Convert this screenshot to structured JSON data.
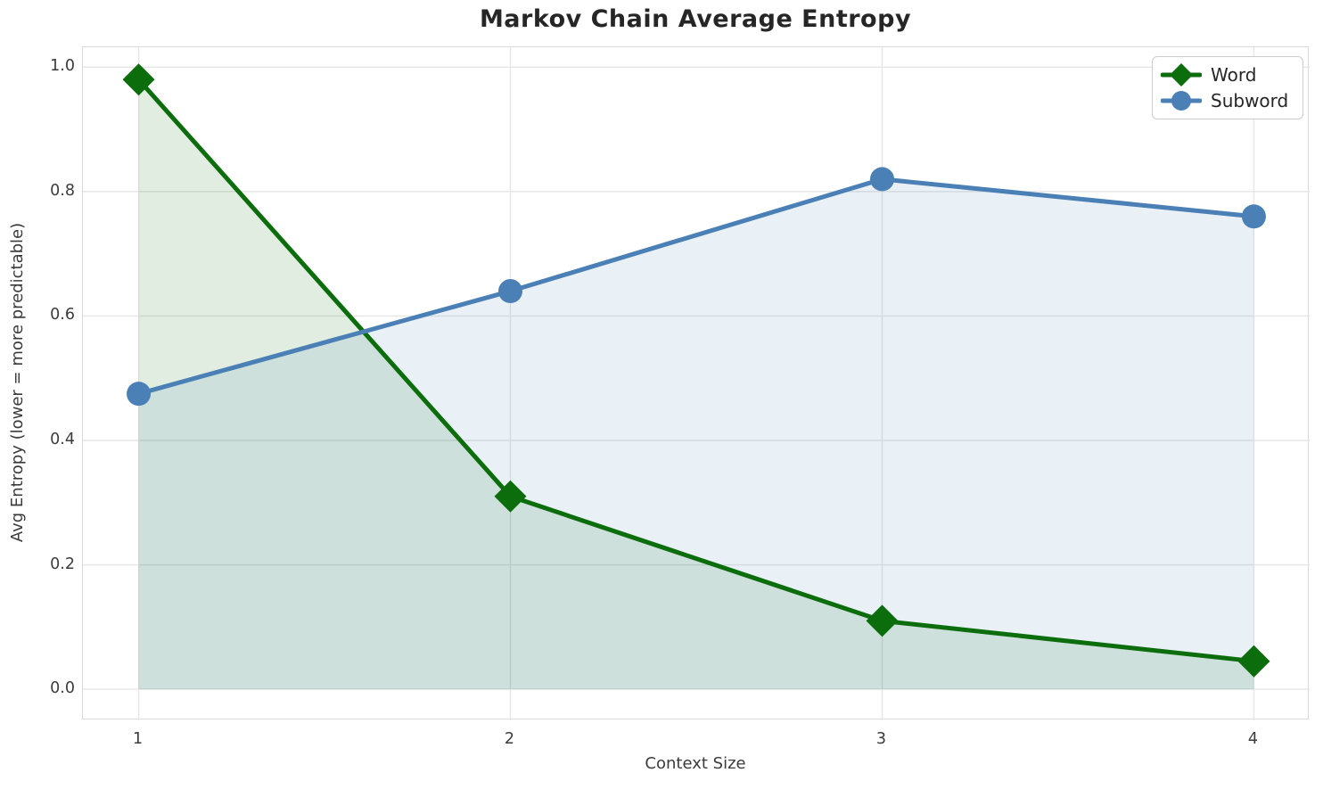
{
  "chart_data": {
    "type": "line",
    "title": "Markov Chain Average Entropy",
    "xlabel": "Context Size",
    "ylabel": "Avg Entropy (lower = more predictable)",
    "x": [
      1,
      2,
      3,
      4
    ],
    "series": [
      {
        "name": "Word",
        "values": [
          0.98,
          0.31,
          0.11,
          0.045
        ],
        "color": "#0b6d0b",
        "marker": "diamond",
        "area_fill": true
      },
      {
        "name": "Subword",
        "values": [
          0.475,
          0.64,
          0.82,
          0.76
        ],
        "color": "#4a80b5",
        "marker": "circle",
        "area_fill": true
      }
    ],
    "x_tick_labels": [
      "1",
      "2",
      "3",
      "4"
    ],
    "x_tick_values": [
      1,
      2,
      3,
      4
    ],
    "y_tick_labels": [
      "0.0",
      "0.2",
      "0.4",
      "0.6",
      "0.8",
      "1.0"
    ],
    "y_tick_values": [
      0.0,
      0.2,
      0.4,
      0.6,
      0.8,
      1.0
    ],
    "xlim": [
      0.85,
      4.15
    ],
    "ylim": [
      -0.05,
      1.032
    ],
    "grid": true,
    "grid_color": "#e6e6e6",
    "fill_alpha": 0.12,
    "fill_baseline": 0.0,
    "legend_position": "upper right",
    "line_width": 5,
    "text_color": "#3b3b3b",
    "title_color": "#262626"
  }
}
